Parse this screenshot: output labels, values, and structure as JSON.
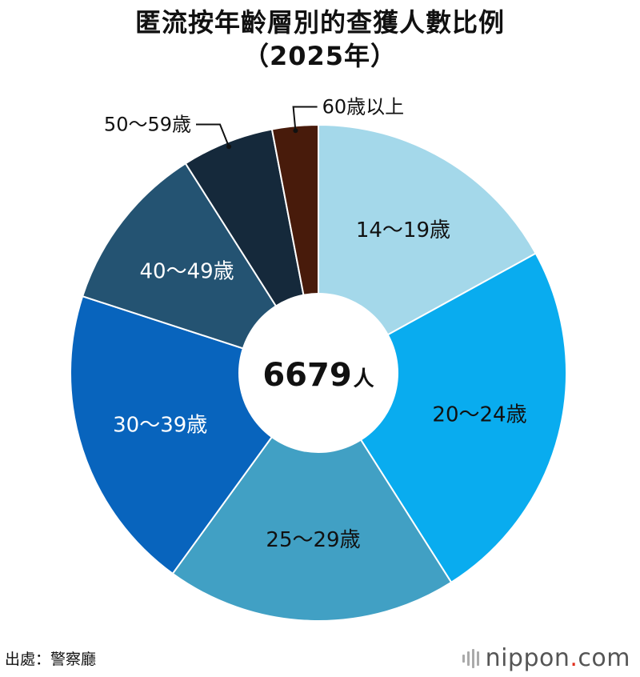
{
  "title": {
    "line1": "匿流按年齡層別的查獲人數比例",
    "line2": "（2025年）"
  },
  "chart_data": {
    "type": "pie",
    "donut": true,
    "center_total": "6679",
    "center_unit": "人",
    "categories": [
      "14〜19歳",
      "20〜24歳",
      "25〜29歳",
      "30〜39歳",
      "40〜49歳",
      "50〜59歳",
      "60歳以上"
    ],
    "values": [
      17,
      24,
      19,
      20,
      11,
      6,
      3
    ],
    "value_unit": "% (estimated from slice angles)",
    "colors": [
      "#a4d8ea",
      "#09acef",
      "#41a0c4",
      "#0864bd",
      "#245372",
      "#15293b",
      "#481b0b"
    ],
    "label_colors": [
      "#111111",
      "#111111",
      "#111111",
      "#ffffff",
      "#ffffff",
      "#111111",
      "#111111"
    ],
    "label_placement": [
      "inside",
      "inside",
      "inside",
      "inside",
      "inside",
      "outside-left",
      "outside-right"
    ],
    "start_angle": "12 o'clock",
    "direction": "clockwise",
    "slice_border": "#ffffff"
  },
  "footer": {
    "source": "出處：警察廳",
    "logo_main": "nippon",
    "logo_dot": ".",
    "logo_tld": "com"
  }
}
